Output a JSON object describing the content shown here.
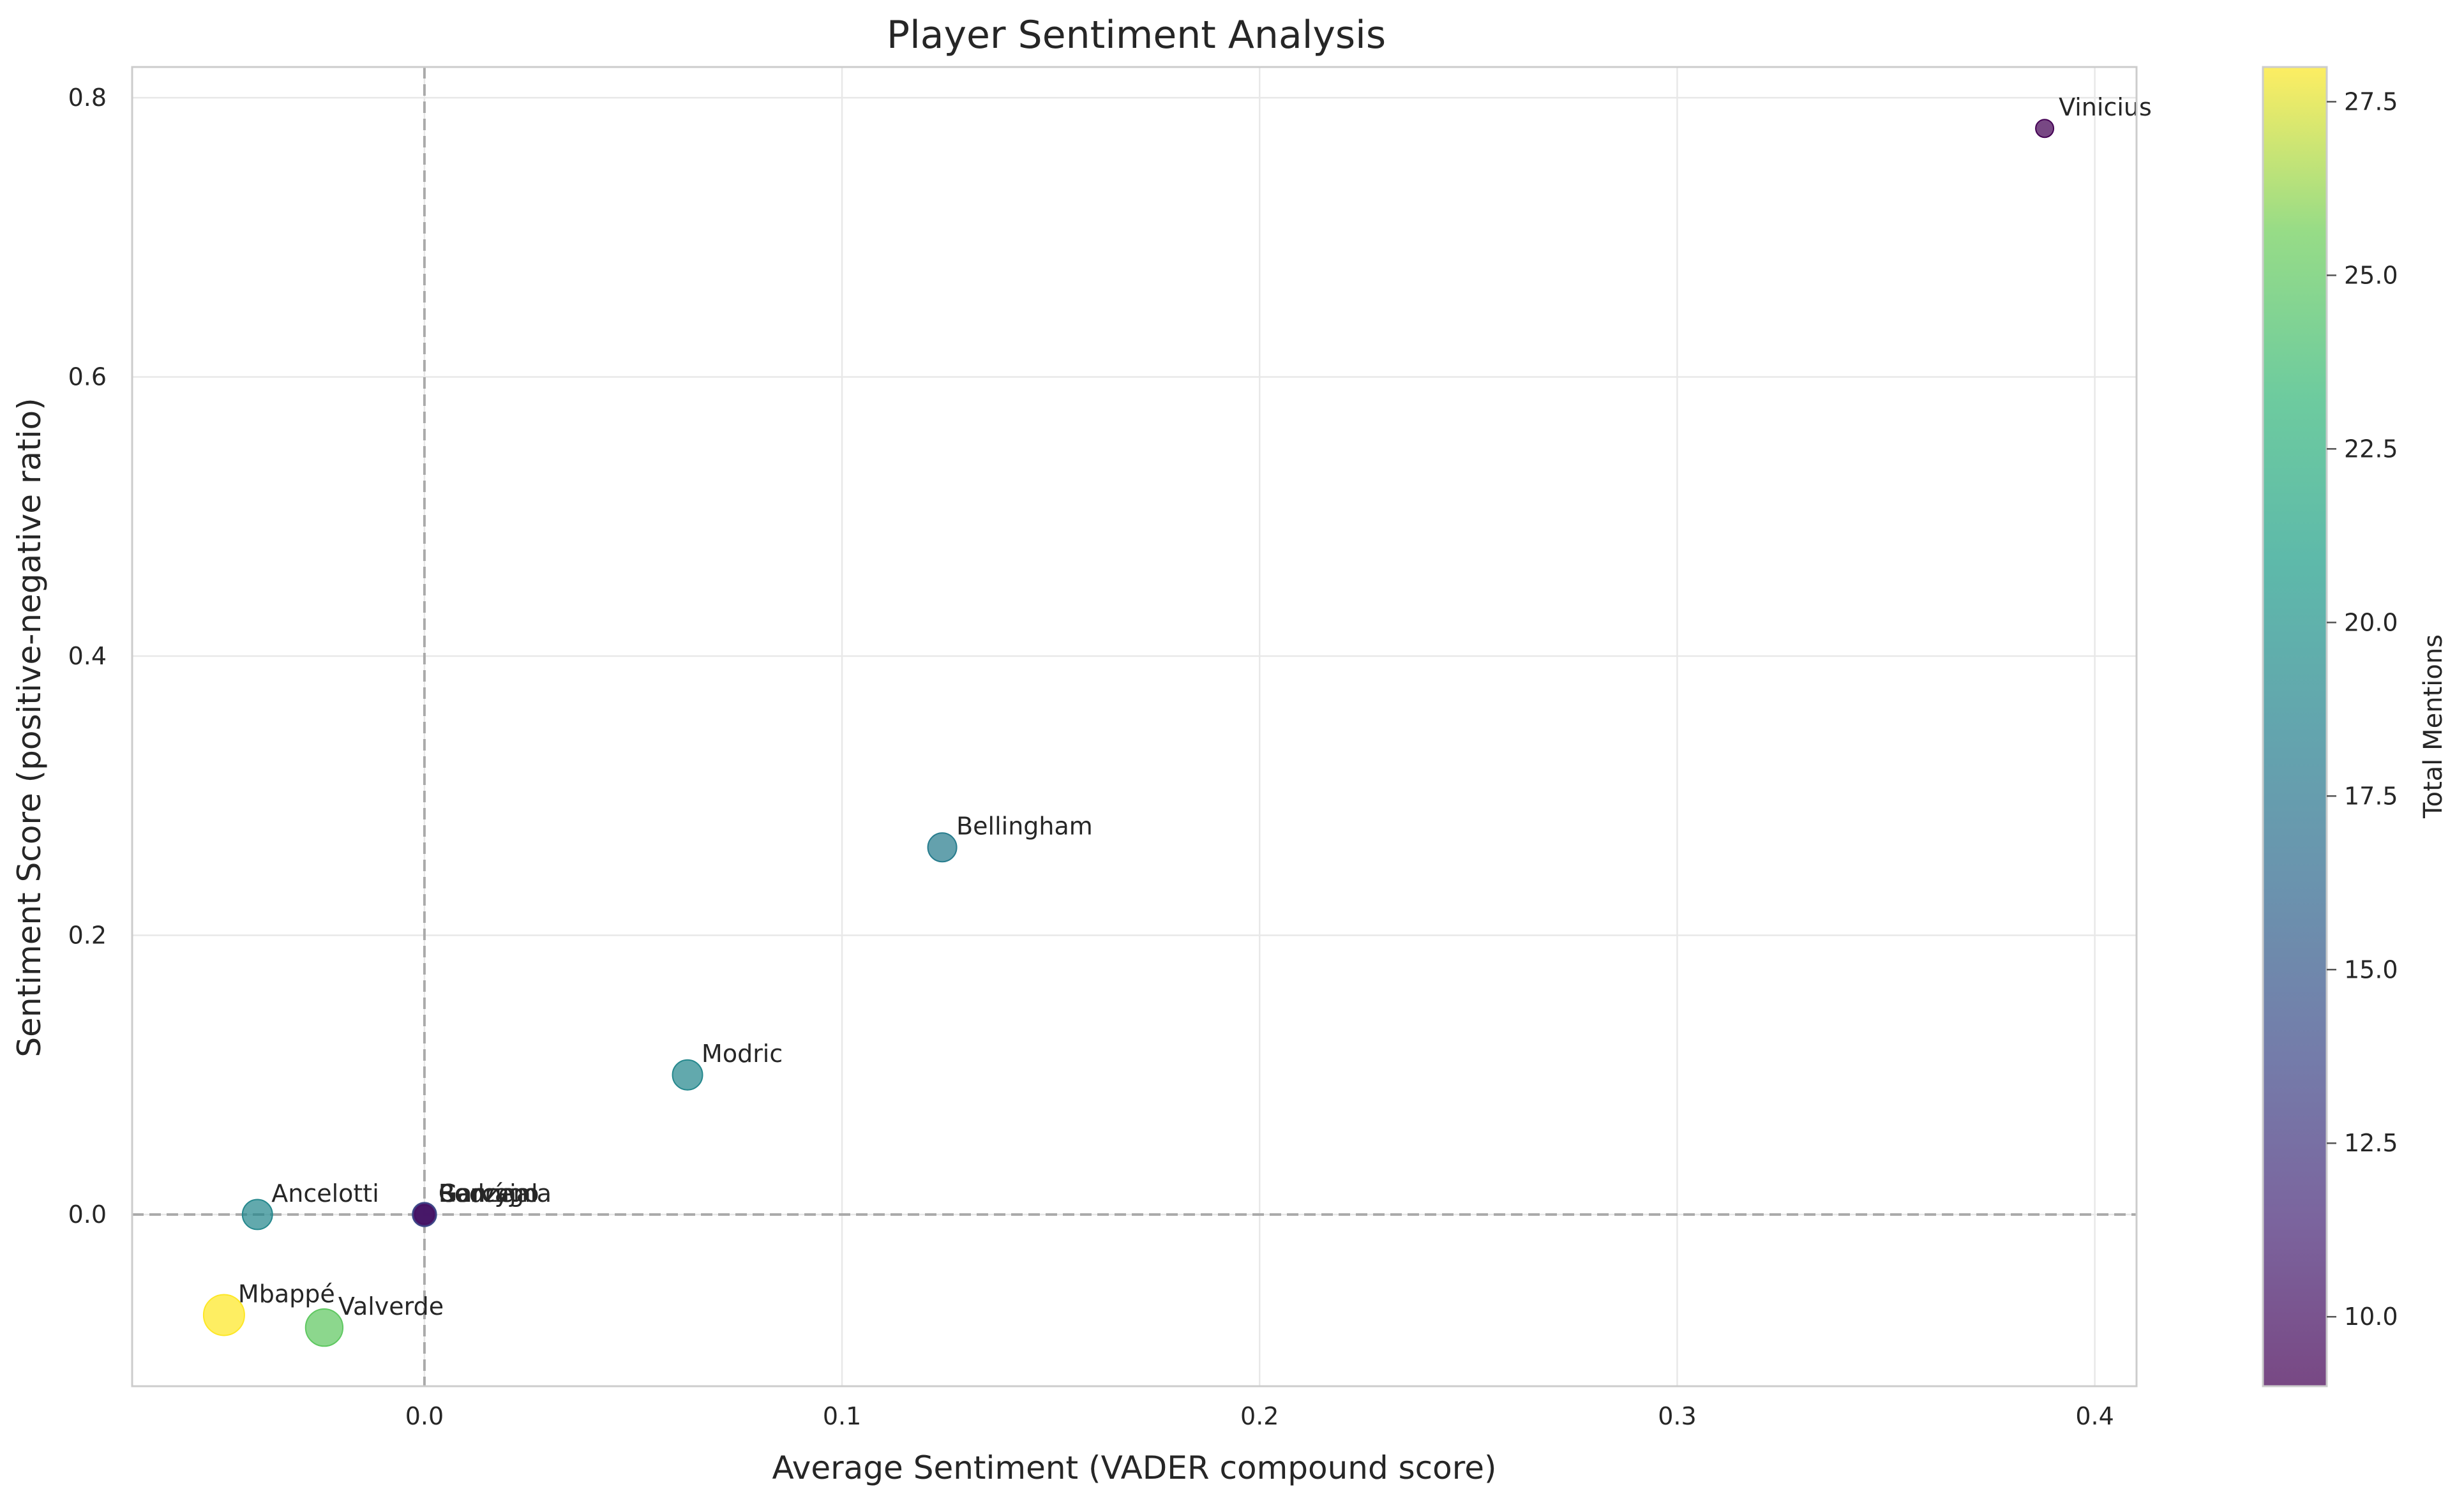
{
  "chart_data": {
    "type": "scatter",
    "title": "Player Sentiment Analysis",
    "xlabel": "Average Sentiment (VADER compound score)",
    "ylabel": "Sentiment Score (positive-negative ratio)",
    "xlim": [
      -0.07,
      0.41
    ],
    "ylim": [
      -0.123,
      0.822
    ],
    "xticks": [
      0.0,
      0.1,
      0.2,
      0.3,
      0.4
    ],
    "xtick_labels": [
      "0.0",
      "0.1",
      "0.2",
      "0.3",
      "0.4"
    ],
    "yticks": [
      0.0,
      0.2,
      0.4,
      0.6,
      0.8
    ],
    "ytick_labels": [
      "0.0",
      "0.2",
      "0.4",
      "0.6",
      "0.8"
    ],
    "grid": true,
    "reference_lines": {
      "x": 0,
      "y": 0,
      "style": "dashed"
    },
    "colormap": "viridis",
    "colorbar": {
      "label": "Total Mentions",
      "range": [
        9,
        28
      ],
      "ticks": [
        10.0,
        12.5,
        15.0,
        17.5,
        20.0,
        22.5,
        25.0,
        27.5
      ],
      "tick_labels": [
        "10.0",
        "12.5",
        "15.0",
        "17.5",
        "20.0",
        "22.5",
        "25.0",
        "27.5"
      ]
    },
    "points": [
      {
        "label": "Vinicius",
        "x": 0.388,
        "y": 0.778,
        "mentions": 9
      },
      {
        "label": "Bellingham",
        "x": 0.124,
        "y": 0.263,
        "mentions": 18
      },
      {
        "label": "Modric",
        "x": 0.063,
        "y": 0.1,
        "mentions": 19
      },
      {
        "label": "Ancelotti",
        "x": -0.04,
        "y": 0.0,
        "mentions": 19
      },
      {
        "label": "Benzema",
        "x": 0.0,
        "y": 0.0,
        "mentions": 14
      },
      {
        "label": "Carvajal",
        "x": 0.0,
        "y": 0.0,
        "mentions": 12
      },
      {
        "label": "Rodrygo",
        "x": 0.0,
        "y": 0.0,
        "mentions": 10
      },
      {
        "label": "García",
        "x": 0.0,
        "y": 0.0,
        "mentions": 11
      },
      {
        "label": "Mbappé",
        "x": -0.048,
        "y": -0.072,
        "mentions": 28
      },
      {
        "label": "Valverde",
        "x": -0.024,
        "y": -0.081,
        "mentions": 25
      }
    ]
  }
}
